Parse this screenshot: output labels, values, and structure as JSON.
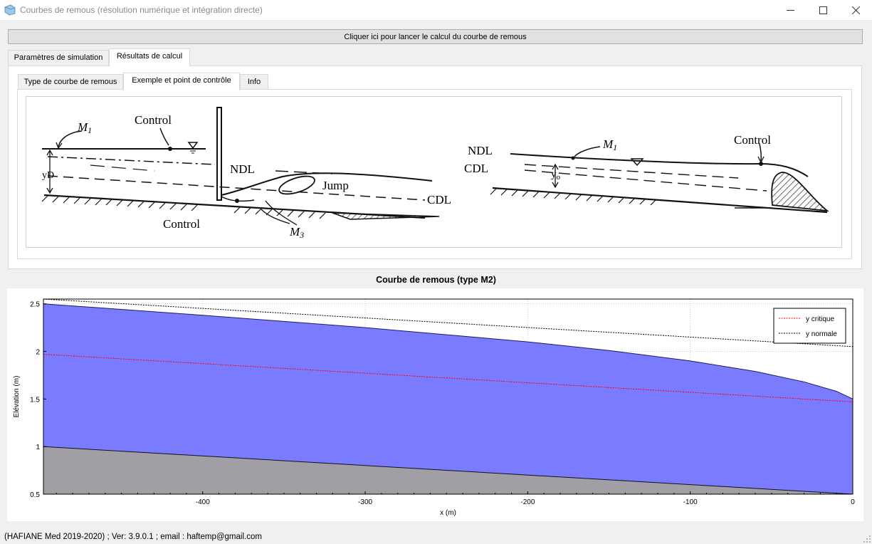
{
  "window": {
    "title": "Courbes de remous (résolution numérique et intégration directe)",
    "icon": "window-app-icon",
    "controls": [
      "minimize-icon",
      "maximize-icon",
      "close-icon"
    ]
  },
  "run_button": {
    "label": "Cliquer ici pour lancer le calcul du courbe de remous"
  },
  "outer_tabs": [
    {
      "label": "Paramètres de simulation",
      "active": false
    },
    {
      "label": "Résultats de calcul",
      "active": true
    }
  ],
  "inner_tabs": [
    {
      "label": "Type de courbe de remous",
      "active": false
    },
    {
      "label": "Exemple et point de contrôle",
      "active": true
    },
    {
      "label": "Info",
      "active": false
    }
  ],
  "sketch": {
    "left": {
      "curve_label": "M",
      "curve_sub": "1",
      "control_top": "Control",
      "ndl": "NDL",
      "depth": "yD",
      "jump": "Jump",
      "cdl": "CDL",
      "control_bottom": "Control",
      "m3": "M",
      "m3_sub": "3"
    },
    "right": {
      "ndl": "NDL",
      "cdl": "CDL",
      "curve_label": "M",
      "curve_sub": "1",
      "depth": "y",
      "depth_sub": "o",
      "control": "Control"
    }
  },
  "chart_data": {
    "type": "area",
    "title": "Courbe de remous (type M2)",
    "xlabel": "x (m)",
    "ylabel": "Elévation (m)",
    "xlim": [
      -498,
      0
    ],
    "ylim": [
      0.5,
      2.55
    ],
    "x_ticks": [
      -400,
      -300,
      -200,
      -100,
      0
    ],
    "y_ticks": [
      0.5,
      1,
      1.5,
      2,
      2.5
    ],
    "y_tick_labels": [
      "0.5",
      "1",
      "1.5",
      "2",
      "2.5"
    ],
    "grid": true,
    "legend_position": "top-right",
    "colors": {
      "water": "#7b7bff",
      "bed": "#a09fa5",
      "critical": "#ff0000",
      "normal": "#000000"
    },
    "series": [
      {
        "kind": "water-surface",
        "x": [
          -498,
          -400,
          -300,
          -200,
          -150,
          -100,
          -60,
          -30,
          -10,
          0
        ],
        "y": [
          2.5,
          2.38,
          2.25,
          2.1,
          2.01,
          1.9,
          1.79,
          1.68,
          1.58,
          1.5
        ]
      },
      {
        "kind": "channel-bed",
        "x": [
          -498,
          0
        ],
        "y": [
          1.0,
          0.5
        ]
      },
      {
        "name": "y critique",
        "x": [
          -498,
          0
        ],
        "y": [
          1.97,
          1.47
        ]
      },
      {
        "name": "y normale",
        "x": [
          -498,
          0
        ],
        "y": [
          2.55,
          2.05
        ]
      }
    ]
  },
  "status_bar": {
    "text": "(HAFIANE Med 2019-2020) ; Ver: 3.9.0.1 ; email : haftemp@gmail.com"
  }
}
